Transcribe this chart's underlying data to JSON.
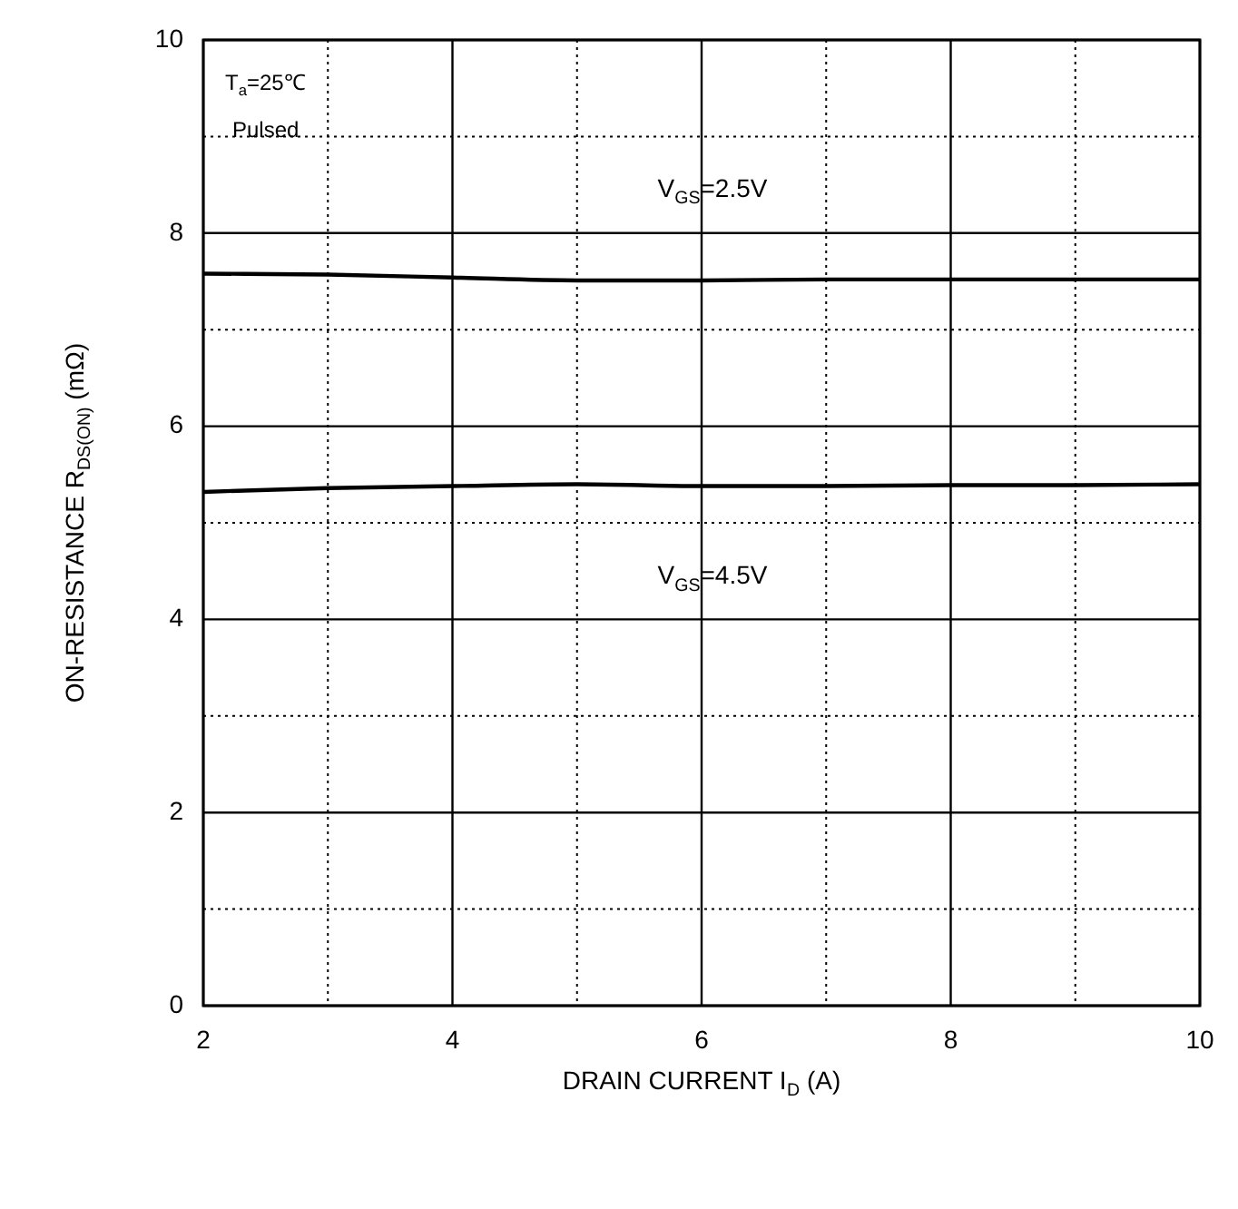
{
  "chart_data": {
    "type": "line",
    "xlabel": "DRAIN CURRENT I$_{D}$ (A)",
    "ylabel": "ON-RESISTANCE R$_{DS(ON)}$ (mΩ)",
    "x": [
      2,
      3,
      4,
      5,
      6,
      7,
      8,
      9,
      10
    ],
    "series": [
      {
        "name": "V$_{GS}$=2.5V",
        "color": "#000000",
        "values": [
          7.58,
          7.57,
          7.54,
          7.51,
          7.51,
          7.52,
          7.52,
          7.52,
          7.52
        ]
      },
      {
        "name": "V$_{GS}$=4.5V",
        "color": "#000000",
        "values": [
          5.32,
          5.36,
          5.38,
          5.4,
          5.38,
          5.38,
          5.39,
          5.39,
          5.4
        ]
      }
    ],
    "xlim": [
      2,
      10
    ],
    "ylim": [
      0,
      10
    ],
    "xticks": [
      2,
      {
        "value": 3,
        "label": null
      },
      4,
      {
        "value": 5,
        "label": null
      },
      6,
      {
        "value": 7,
        "label": null
      },
      8,
      {
        "value": 9,
        "label": null
      },
      10
    ],
    "yticks": [
      0,
      {
        "value": 1,
        "label": null
      },
      2,
      {
        "value": 3,
        "label": null
      },
      4,
      {
        "value": 5,
        "label": null
      },
      6,
      {
        "value": 7,
        "label": null
      },
      8,
      {
        "value": 9,
        "label": null
      },
      10
    ],
    "annotations": [
      "T$_{a}$=25℃",
      "Pulsed"
    ],
    "grid": true,
    "legend": false,
    "marker": "none",
    "line_style": "solid"
  }
}
